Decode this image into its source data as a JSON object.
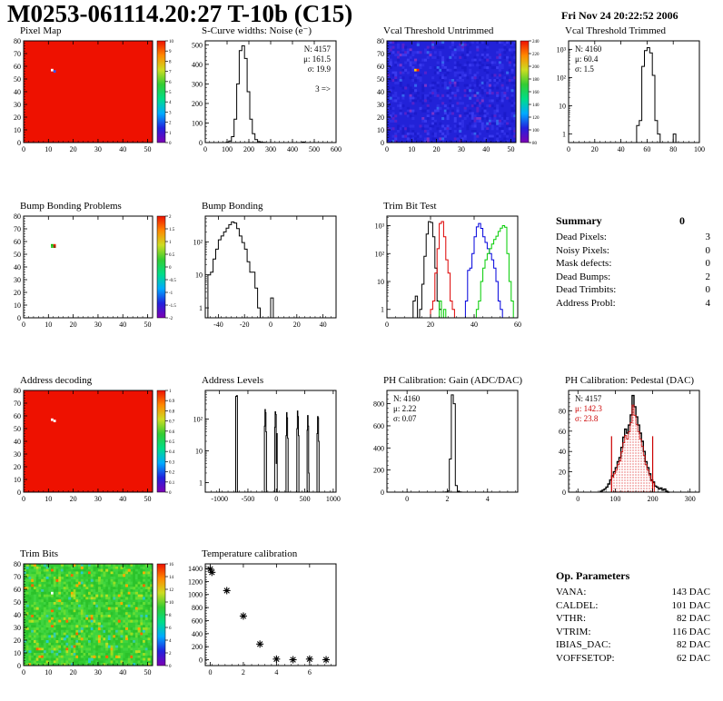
{
  "header": {
    "title": "M0253-061114.20:27 T-10b (C15)",
    "timestamp": "Fri Nov 24 20:22:52 2006"
  },
  "summary": {
    "title": "Summary",
    "value": "0",
    "rows": [
      {
        "label": "Dead Pixels:",
        "value": "3"
      },
      {
        "label": "Noisy Pixels:",
        "value": "0"
      },
      {
        "label": "Mask defects:",
        "value": "0"
      },
      {
        "label": "Dead Bumps:",
        "value": "2"
      },
      {
        "label": "Dead Trimbits:",
        "value": "0"
      },
      {
        "label": "Address Probl:",
        "value": "4"
      }
    ]
  },
  "op_parameters": {
    "title": "Op. Parameters",
    "rows": [
      {
        "label": "VANA:",
        "value": "143 DAC"
      },
      {
        "label": "CALDEL:",
        "value": "101 DAC"
      },
      {
        "label": "VTHR:",
        "value": "82 DAC"
      },
      {
        "label": "VTRIM:",
        "value": "116 DAC"
      },
      {
        "label": "IBIAS_DAC:",
        "value": "82 DAC"
      },
      {
        "label": "VOFFSETOP:",
        "value": "62 DAC"
      }
    ]
  },
  "palette": {
    "rainbow": [
      "#7d00b3",
      "#2222dd",
      "#00aaff",
      "#00dd88",
      "#33cc33",
      "#ccdd22",
      "#ff8800",
      "#ee1100"
    ]
  },
  "chart_data": [
    {
      "name": "Pixel Map",
      "type": "heatmap",
      "base": "#ee1100",
      "noise": null,
      "dots": [
        {
          "x": 11,
          "y": 57,
          "c": "#ffffff"
        },
        {
          "x": 12,
          "y": 56,
          "c": "#3355ff"
        }
      ],
      "xlim": [
        0,
        52
      ],
      "ylim": [
        0,
        80
      ],
      "xticks": [
        0,
        10,
        20,
        30,
        40,
        50
      ],
      "yticks": [
        0,
        10,
        20,
        30,
        40,
        50,
        60,
        70,
        80
      ],
      "colorbar": [
        "10",
        "9",
        "8",
        "7",
        "6",
        "5",
        "4",
        "3",
        "2",
        "1",
        "0"
      ]
    },
    {
      "name": "S-Curve widths: Noise (e⁻)",
      "type": "hist",
      "xlim": [
        0,
        600
      ],
      "ylim": [
        0,
        520
      ],
      "xticks": [
        0,
        100,
        200,
        300,
        400,
        500,
        600
      ],
      "yticks": [
        0,
        100,
        200,
        300,
        400,
        500
      ],
      "series": [
        {
          "c": "#000000",
          "x0": 96,
          "binw": 12,
          "y": [
            2,
            8,
            30,
            120,
            300,
            470,
            495,
            430,
            260,
            120,
            45,
            15,
            5,
            2,
            1,
            0
          ]
        },
        {
          "c": "#000000",
          "x0": 444,
          "binw": 12,
          "y": [
            3
          ]
        }
      ],
      "stats": {
        "side": "right",
        "lines": [
          {
            "t": "N: 4157",
            "c": "#000000"
          },
          {
            "t": "μ: 161.5",
            "c": "#000000"
          },
          {
            "t": "σ: 19.9",
            "c": "#000000"
          },
          {
            "t": "",
            "c": "#000000"
          },
          {
            "t": "3 =>",
            "c": "#000000"
          }
        ]
      }
    },
    {
      "name": "Vcal Threshold Untrimmed",
      "type": "heatmap",
      "base": "#2222d8",
      "noise": "blue",
      "dots": [
        {
          "x": 11,
          "y": 57,
          "c": "#ffcc00"
        },
        {
          "x": 12,
          "y": 57,
          "c": "#ff2200"
        }
      ],
      "xlim": [
        0,
        52
      ],
      "ylim": [
        0,
        80
      ],
      "xticks": [
        0,
        10,
        20,
        30,
        40,
        50
      ],
      "yticks": [
        0,
        10,
        20,
        30,
        40,
        50,
        60,
        70,
        80
      ],
      "colorbar": [
        "240",
        "220",
        "200",
        "180",
        "160",
        "140",
        "120",
        "100",
        "80"
      ]
    },
    {
      "name": "Vcal Threshold Trimmed",
      "type": "hist",
      "log": true,
      "xlim": [
        0,
        100
      ],
      "ymin": 0.5,
      "ymax": 2000,
      "xticks": [
        0,
        20,
        40,
        60,
        80,
        100
      ],
      "ylabels": [
        [
          "1",
          1
        ],
        [
          "10",
          10
        ],
        [
          "10²",
          100
        ],
        [
          "10³",
          1000
        ]
      ],
      "series": [
        {
          "c": "#000000",
          "x0": 52,
          "binw": 2,
          "y": [
            2,
            3,
            250,
            900,
            1150,
            750,
            120,
            3,
            1,
            0
          ]
        },
        {
          "c": "#000000",
          "x0": 80,
          "binw": 2,
          "y": [
            1
          ]
        }
      ],
      "stats": {
        "side": "left",
        "lines": [
          {
            "t": "N: 4160",
            "c": "#000000"
          },
          {
            "t": "μ: 60.4",
            "c": "#000000"
          },
          {
            "t": "σ:  1.5",
            "c": "#000000"
          }
        ]
      }
    },
    {
      "name": "Bump Bonding Problems",
      "type": "heatmap",
      "base": "#ffffff",
      "noise": null,
      "dots": [
        {
          "x": 11,
          "y": 57,
          "c": "#00bb00"
        },
        {
          "x": 12,
          "y": 57,
          "c": "#ff2200"
        },
        {
          "x": 11,
          "y": 56,
          "c": "#33cc33"
        },
        {
          "x": 12,
          "y": 56,
          "c": "#993300"
        }
      ],
      "xlim": [
        0,
        52
      ],
      "ylim": [
        0,
        80
      ],
      "xticks": [
        0,
        10,
        20,
        30,
        40,
        50
      ],
      "yticks": [
        0,
        10,
        20,
        30,
        40,
        50,
        60,
        70,
        80
      ],
      "colorbar": [
        "2",
        "1.5",
        "1",
        "0.5",
        "0",
        "-0.5",
        "-1",
        "-1.5",
        "-2"
      ]
    },
    {
      "name": "Bump Bonding",
      "type": "hist",
      "log": true,
      "xlim": [
        -50,
        50
      ],
      "ymin": 0.5,
      "ymax": 600,
      "xticks": [
        -40,
        -20,
        0,
        20,
        40
      ],
      "ylabels": [
        [
          "1",
          1
        ],
        [
          "10",
          10
        ],
        [
          "10²",
          100
        ]
      ],
      "series": [
        {
          "c": "#000000",
          "x0": -48,
          "binw": 2,
          "y": [
            10,
            12,
            30,
            60,
            115,
            150,
            200,
            260,
            330,
            400,
            370,
            250,
            150,
            95,
            60,
            25,
            12,
            12,
            4,
            1,
            0
          ]
        },
        {
          "c": "#000000",
          "x0": 0,
          "binw": 2,
          "y": [
            2
          ]
        }
      ]
    },
    {
      "name": "Trim Bit Test",
      "type": "hist",
      "log": true,
      "xlim": [
        0,
        60
      ],
      "ymin": 0.5,
      "ymax": 2200,
      "xticks": [
        0,
        20,
        40,
        60
      ],
      "ylabels": [
        [
          "1",
          1
        ],
        [
          "10",
          10
        ],
        [
          "10²",
          100
        ],
        [
          "10³",
          1000
        ]
      ],
      "series": [
        {
          "c": "#000000",
          "x0": 12,
          "binw": 1,
          "y": [
            2,
            3,
            0,
            1,
            8,
            80,
            500,
            1400,
            1300,
            400,
            30,
            2,
            1,
            0
          ]
        },
        {
          "c": "#dd0000",
          "x0": 20,
          "binw": 1,
          "y": [
            1,
            2,
            20,
            150,
            1200,
            1400,
            400,
            60,
            20,
            2,
            1,
            0
          ],
          "full": true
        },
        {
          "c": "#0000dd",
          "x0": 36,
          "binw": 1,
          "y": [
            2,
            25,
            30,
            100,
            400,
            900,
            1200,
            800,
            400,
            250,
            150,
            100,
            60,
            30,
            10,
            2,
            1,
            0
          ],
          "full": true
        },
        {
          "c": "#00cc00",
          "x0": 41,
          "binw": 1,
          "y": [
            1,
            2,
            10,
            30,
            60,
            100,
            150,
            220,
            320,
            420,
            620,
            820,
            1000,
            880,
            100,
            10,
            2,
            0
          ],
          "full": true
        },
        {
          "c": "#00cc00",
          "x0": 24,
          "binw": 1,
          "y": [
            2,
            0,
            1
          ]
        }
      ]
    },
    {
      "name": "Address decoding",
      "type": "heatmap",
      "base": "#ee1100",
      "noise": null,
      "dots": [
        {
          "x": 11,
          "y": 57,
          "c": "#ffffff"
        },
        {
          "x": 12,
          "y": 56,
          "c": "#ffffff"
        }
      ],
      "xlim": [
        0,
        52
      ],
      "ylim": [
        0,
        80
      ],
      "xticks": [
        0,
        10,
        20,
        30,
        40,
        50
      ],
      "yticks": [
        0,
        10,
        20,
        30,
        40,
        50,
        60,
        70,
        80
      ],
      "colorbar": [
        "1",
        "0.9",
        "0.8",
        "0.7",
        "0.6",
        "0.5",
        "0.4",
        "0.3",
        "0.2",
        "0.1",
        "0"
      ]
    },
    {
      "name": "Address Levels",
      "type": "hist",
      "log": true,
      "xlim": [
        -1250,
        1050
      ],
      "ymin": 0.5,
      "ymax": 800,
      "xticks": [
        -1000,
        -500,
        0,
        500,
        1000
      ],
      "ylabels": [
        [
          "1",
          1
        ],
        [
          "10",
          10
        ],
        [
          "10²",
          100
        ]
      ],
      "series": [
        {
          "c": "#000000",
          "x0": -715,
          "binw": 15,
          "y": [
            520,
            550
          ]
        },
        {
          "c": "#000000",
          "x0": -210,
          "binw": 9,
          "y": [
            60,
            200,
            160,
            40
          ]
        },
        {
          "c": "#000000",
          "x0": -30,
          "binw": 9,
          "y": [
            55,
            170,
            140,
            4,
            35
          ]
        },
        {
          "c": "#000000",
          "x0": 170,
          "binw": 9,
          "y": [
            30,
            160,
            110,
            25
          ]
        },
        {
          "c": "#000000",
          "x0": 360,
          "binw": 9,
          "y": [
            50,
            180,
            120,
            30
          ]
        },
        {
          "c": "#000000",
          "x0": 540,
          "binw": 9,
          "y": [
            45,
            130,
            60,
            2
          ]
        },
        {
          "c": "#000000",
          "x0": 715,
          "binw": 9,
          "y": [
            35,
            120,
            110,
            20
          ]
        }
      ]
    },
    {
      "name": "PH Calibration: Gain (ADC/DAC)",
      "type": "hist",
      "xlim": [
        -1,
        5.5
      ],
      "ylim": [
        0,
        920
      ],
      "xticks": [
        0,
        2,
        4
      ],
      "yticks": [
        0,
        200,
        400,
        600,
        800
      ],
      "series": [
        {
          "c": "#000000",
          "x0": 1.9,
          "binw": 0.1,
          "y": [
            2,
            10,
            300,
            880,
            800,
            60,
            8,
            2,
            0
          ]
        }
      ],
      "stats": {
        "side": "left",
        "lines": [
          {
            "t": "N: 4160",
            "c": "#000000"
          },
          {
            "t": "μ: 2.22",
            "c": "#000000"
          },
          {
            "t": "σ: 0.07",
            "c": "#000000"
          }
        ]
      }
    },
    {
      "name": "PH Calibration: Pedestal (DAC)",
      "type": "hist",
      "xlim": [
        -25,
        325
      ],
      "ylim": [
        0,
        100
      ],
      "xticks": [
        0,
        100,
        200,
        300
      ],
      "yticks": [
        0,
        20,
        40,
        60,
        80
      ],
      "series": [
        {
          "c": "#000000",
          "x0": 60,
          "binw": 5,
          "lw": 1.4,
          "y": [
            1,
            2,
            3,
            5,
            8,
            12,
            16,
            20,
            24,
            30,
            34,
            44,
            54,
            62,
            58,
            66,
            76,
            95,
            84,
            74,
            66,
            58,
            50,
            40,
            30,
            24,
            18,
            12,
            10,
            6,
            5,
            3,
            4,
            2,
            3,
            1,
            0
          ]
        },
        {
          "c": "#cc0000",
          "x0": 90,
          "binw": 5,
          "fill": "dots",
          "scale": 0.9,
          "y": [
            16,
            20,
            24,
            30,
            34,
            44,
            54,
            62,
            58,
            66,
            76,
            95,
            84,
            74,
            66,
            58,
            50,
            40,
            30,
            24,
            18,
            12,
            10
          ]
        }
      ],
      "vlines": [
        {
          "x": 90,
          "y": 55,
          "c": "#cc0000"
        },
        {
          "x": 200,
          "y": 55,
          "c": "#cc0000"
        }
      ],
      "stats": {
        "side": "left",
        "lines": [
          {
            "t": "N: 4157",
            "c": "#000000"
          },
          {
            "t": "μ: 142.3",
            "c": "#cc0000"
          },
          {
            "t": "σ: 23.8",
            "c": "#cc0000"
          }
        ]
      }
    },
    {
      "name": "Trim Bits",
      "type": "heatmap",
      "base": "#33cc33",
      "noise": "green",
      "dots": [
        {
          "x": 11,
          "y": 57,
          "c": "#ffffff"
        }
      ],
      "xlim": [
        0,
        52
      ],
      "ylim": [
        0,
        80
      ],
      "xticks": [
        0,
        10,
        20,
        30,
        40,
        50
      ],
      "yticks": [
        0,
        10,
        20,
        30,
        40,
        50,
        60,
        70,
        80
      ],
      "colorbar": [
        "16",
        "14",
        "12",
        "10",
        "8",
        "6",
        "4",
        "2",
        "0"
      ]
    },
    {
      "name": "Temperature calibration",
      "type": "scatter",
      "xlim": [
        -0.3,
        7.6
      ],
      "ylim": [
        -90,
        1470
      ],
      "xticks": [
        0,
        2,
        4,
        6
      ],
      "yticks": [
        0,
        200,
        400,
        600,
        800,
        1000,
        1200,
        1400
      ],
      "points": [
        [
          0,
          1390
        ],
        [
          0.1,
          1340
        ],
        [
          1,
          1060
        ],
        [
          2,
          670
        ],
        [
          3,
          240
        ],
        [
          4,
          10
        ],
        [
          5,
          0
        ],
        [
          6,
          10
        ],
        [
          7,
          0
        ]
      ]
    }
  ]
}
